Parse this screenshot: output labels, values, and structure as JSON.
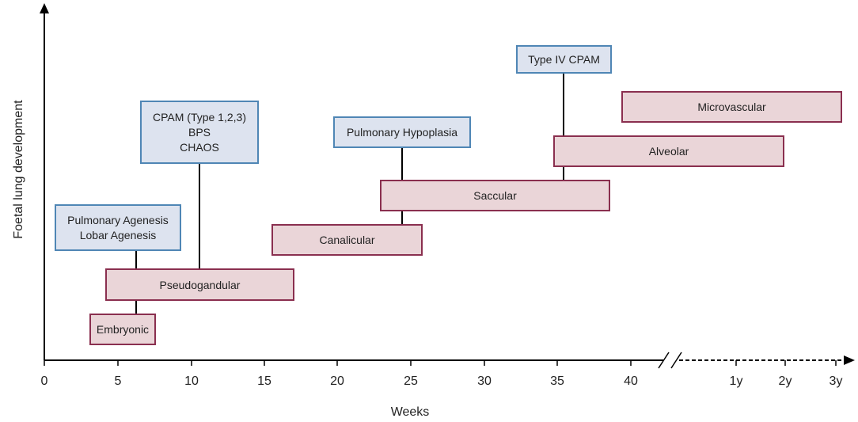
{
  "axes": {
    "x_title": "Weeks",
    "y_title": "Foetal lung development",
    "week_ticks": [
      "0",
      "5",
      "10",
      "15",
      "20",
      "25",
      "30",
      "35",
      "40"
    ],
    "year_ticks": [
      "1y",
      "2y",
      "3y"
    ]
  },
  "stages": {
    "embryonic": "Embryonic",
    "pseudoglandular": "Pseudogandular",
    "canalicular": "Canalicular",
    "saccular": "Saccular",
    "alveolar": "Alveolar",
    "microvascular": "Microvascular"
  },
  "anomalies": {
    "agenesis": {
      "line1": "Pulmonary Agenesis",
      "line2": "Lobar Agenesis"
    },
    "cpam": {
      "line1": "CPAM (Type 1,2,3)",
      "line2": "BPS",
      "line3": "CHAOS"
    },
    "hypoplasia": {
      "line1": "Pulmonary Hypoplasia"
    },
    "type4": {
      "line1": "Type IV CPAM"
    }
  },
  "colors": {
    "stage_fill": "#ead5d8",
    "stage_border": "#8a2f4f",
    "anomaly_fill": "#dde3ef",
    "anomaly_border": "#4f86b5"
  }
}
